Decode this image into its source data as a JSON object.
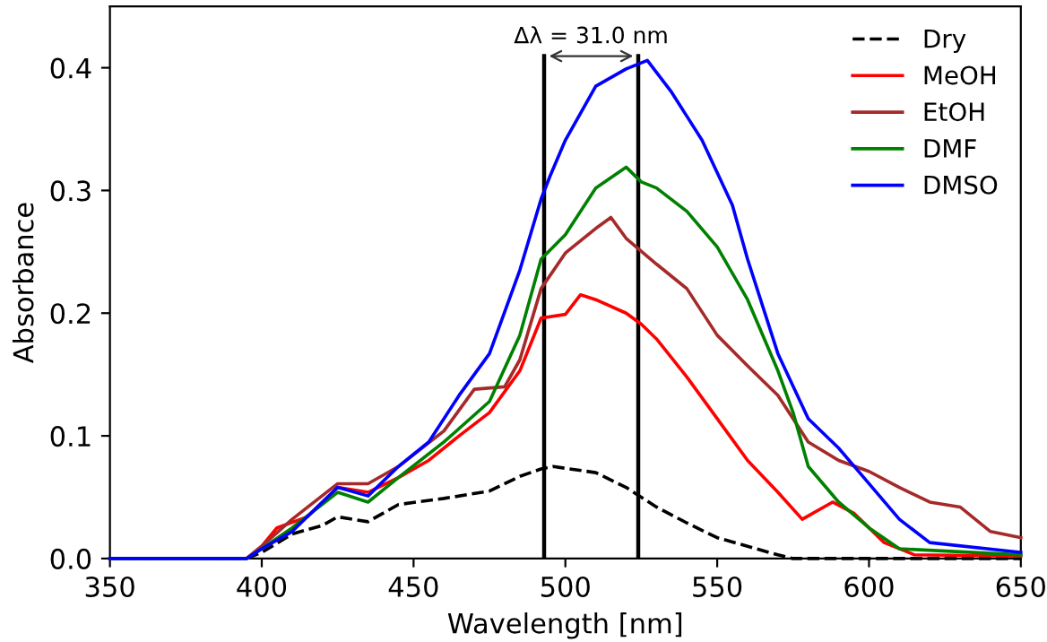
{
  "chart_data": {
    "type": "line",
    "xlabel": "Wavelength [nm]",
    "ylabel": "Absorbance",
    "xlim": [
      350,
      650
    ],
    "ylim": [
      0,
      0.45
    ],
    "xticks": [
      350,
      400,
      450,
      500,
      550,
      600,
      650
    ],
    "yticks": [
      {
        "value": 0,
        "label": "0.0"
      },
      0.1,
      0.2,
      0.3,
      0.4
    ],
    "grid": false,
    "legend": "top right",
    "marker": "none",
    "series": [
      {
        "name": "Dry",
        "color": "#000000",
        "line_style": "dashed",
        "x": [
          350,
          395,
          400,
          410,
          420,
          425,
          435,
          445,
          460,
          475,
          485,
          492,
          496,
          510,
          520,
          530,
          540,
          550,
          560,
          570,
          575,
          650
        ],
        "values": [
          0,
          0,
          0.005,
          0.02,
          0.027,
          0.034,
          0.03,
          0.044,
          0.049,
          0.055,
          0.067,
          0.073,
          0.075,
          0.07,
          0.058,
          0.042,
          0.029,
          0.017,
          0.01,
          0.003,
          0,
          0
        ]
      },
      {
        "name": "MeOH",
        "color": "#ff0000",
        "line_style": "solid",
        "x": [
          350,
          395,
          400,
          405,
          415,
          425,
          435,
          445,
          455,
          465,
          475,
          485,
          492,
          500,
          505,
          510,
          520,
          525,
          530,
          540,
          550,
          560,
          570,
          578,
          588,
          595,
          605,
          615,
          650
        ],
        "values": [
          0,
          0,
          0.01,
          0.025,
          0.034,
          0.058,
          0.054,
          0.066,
          0.08,
          0.1,
          0.119,
          0.153,
          0.196,
          0.199,
          0.215,
          0.211,
          0.2,
          0.191,
          0.179,
          0.148,
          0.114,
          0.08,
          0.054,
          0.032,
          0.046,
          0.037,
          0.013,
          0.003,
          0.002
        ]
      },
      {
        "name": "EtOH",
        "color": "#a52a2a",
        "line_style": "solid",
        "x": [
          350,
          395,
          400,
          410,
          425,
          435,
          445,
          460,
          470,
          480,
          485,
          492,
          500,
          510,
          515,
          520,
          530,
          540,
          550,
          560,
          570,
          580,
          590,
          600,
          610,
          620,
          630,
          640,
          650
        ],
        "values": [
          0,
          0,
          0.01,
          0.032,
          0.061,
          0.061,
          0.075,
          0.104,
          0.138,
          0.14,
          0.162,
          0.22,
          0.249,
          0.269,
          0.278,
          0.261,
          0.24,
          0.22,
          0.182,
          0.157,
          0.133,
          0.095,
          0.08,
          0.071,
          0.058,
          0.046,
          0.042,
          0.022,
          0.017
        ]
      },
      {
        "name": "DMF",
        "color": "#008000",
        "line_style": "solid",
        "x": [
          350,
          395,
          400,
          410,
          425,
          435,
          445,
          460,
          475,
          485,
          492,
          500,
          510,
          520,
          525,
          530,
          540,
          550,
          560,
          570,
          575,
          580,
          590,
          600,
          610,
          650
        ],
        "values": [
          0,
          0,
          0.008,
          0.025,
          0.054,
          0.046,
          0.066,
          0.095,
          0.128,
          0.182,
          0.244,
          0.264,
          0.302,
          0.319,
          0.307,
          0.302,
          0.283,
          0.254,
          0.211,
          0.153,
          0.119,
          0.075,
          0.046,
          0.025,
          0.008,
          0.003
        ]
      },
      {
        "name": "DMSO",
        "color": "#0000ff",
        "line_style": "solid",
        "x": [
          350,
          395,
          400,
          410,
          425,
          435,
          445,
          455,
          465,
          475,
          485,
          492,
          495,
          500,
          510,
          520,
          527,
          535,
          545,
          555,
          560,
          570,
          580,
          590,
          600,
          610,
          620,
          650
        ],
        "values": [
          0,
          0,
          0.008,
          0.022,
          0.058,
          0.051,
          0.075,
          0.095,
          0.133,
          0.167,
          0.235,
          0.293,
          0.312,
          0.341,
          0.385,
          0.399,
          0.406,
          0.38,
          0.341,
          0.288,
          0.244,
          0.167,
          0.114,
          0.09,
          0.061,
          0.032,
          0.013,
          0.005
        ]
      }
    ],
    "ref_lines": [
      {
        "axis": "x",
        "value": 493,
        "color": "#000000"
      },
      {
        "axis": "x",
        "value": 524,
        "color": "#000000"
      }
    ],
    "annotations": [
      "Δλ = 31.0 nm"
    ]
  }
}
